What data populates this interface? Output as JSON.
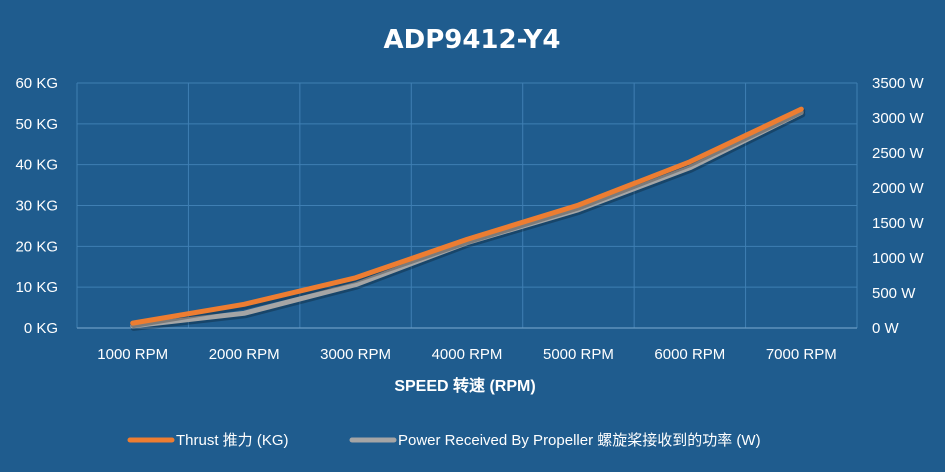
{
  "chart_data": {
    "type": "line",
    "title": "ADP9412-Y4",
    "xlabel": "SPEED 转速 (RPM)",
    "x": [
      "1000 RPM",
      "2000 RPM",
      "3000 RPM",
      "4000 RPM",
      "5000 RPM",
      "6000 RPM",
      "7000 RPM"
    ],
    "y_left": {
      "ticks": [
        "0 KG",
        "10 KG",
        "20 KG",
        "30 KG",
        "40 KG",
        "50 KG",
        "60 KG"
      ],
      "ylim": [
        0,
        60
      ]
    },
    "y_right": {
      "ticks": [
        "0 W",
        "500 W",
        "1000 W",
        "1500 W",
        "2000 W",
        "2500 W",
        "3000 W",
        "3500 W"
      ],
      "ylim": [
        0,
        3500
      ]
    },
    "series": [
      {
        "name": "Thrust 推力 (KG)",
        "axis": "left",
        "color": "#ed7d31",
        "values": [
          1.2,
          5.8,
          12.3,
          21.7,
          30.1,
          40.7,
          53.6
        ]
      },
      {
        "name": "Power Received By Propeller 螺旋桨接收到的功率 (W)",
        "axis": "right",
        "color": "#a5a5a5",
        "values": [
          30,
          210,
          620,
          1220,
          1690,
          2290,
          3080
        ]
      }
    ],
    "grid": true,
    "legend_position": "bottom",
    "background_color": "#1f5c8e",
    "grid_color": "#3f7fb3"
  }
}
